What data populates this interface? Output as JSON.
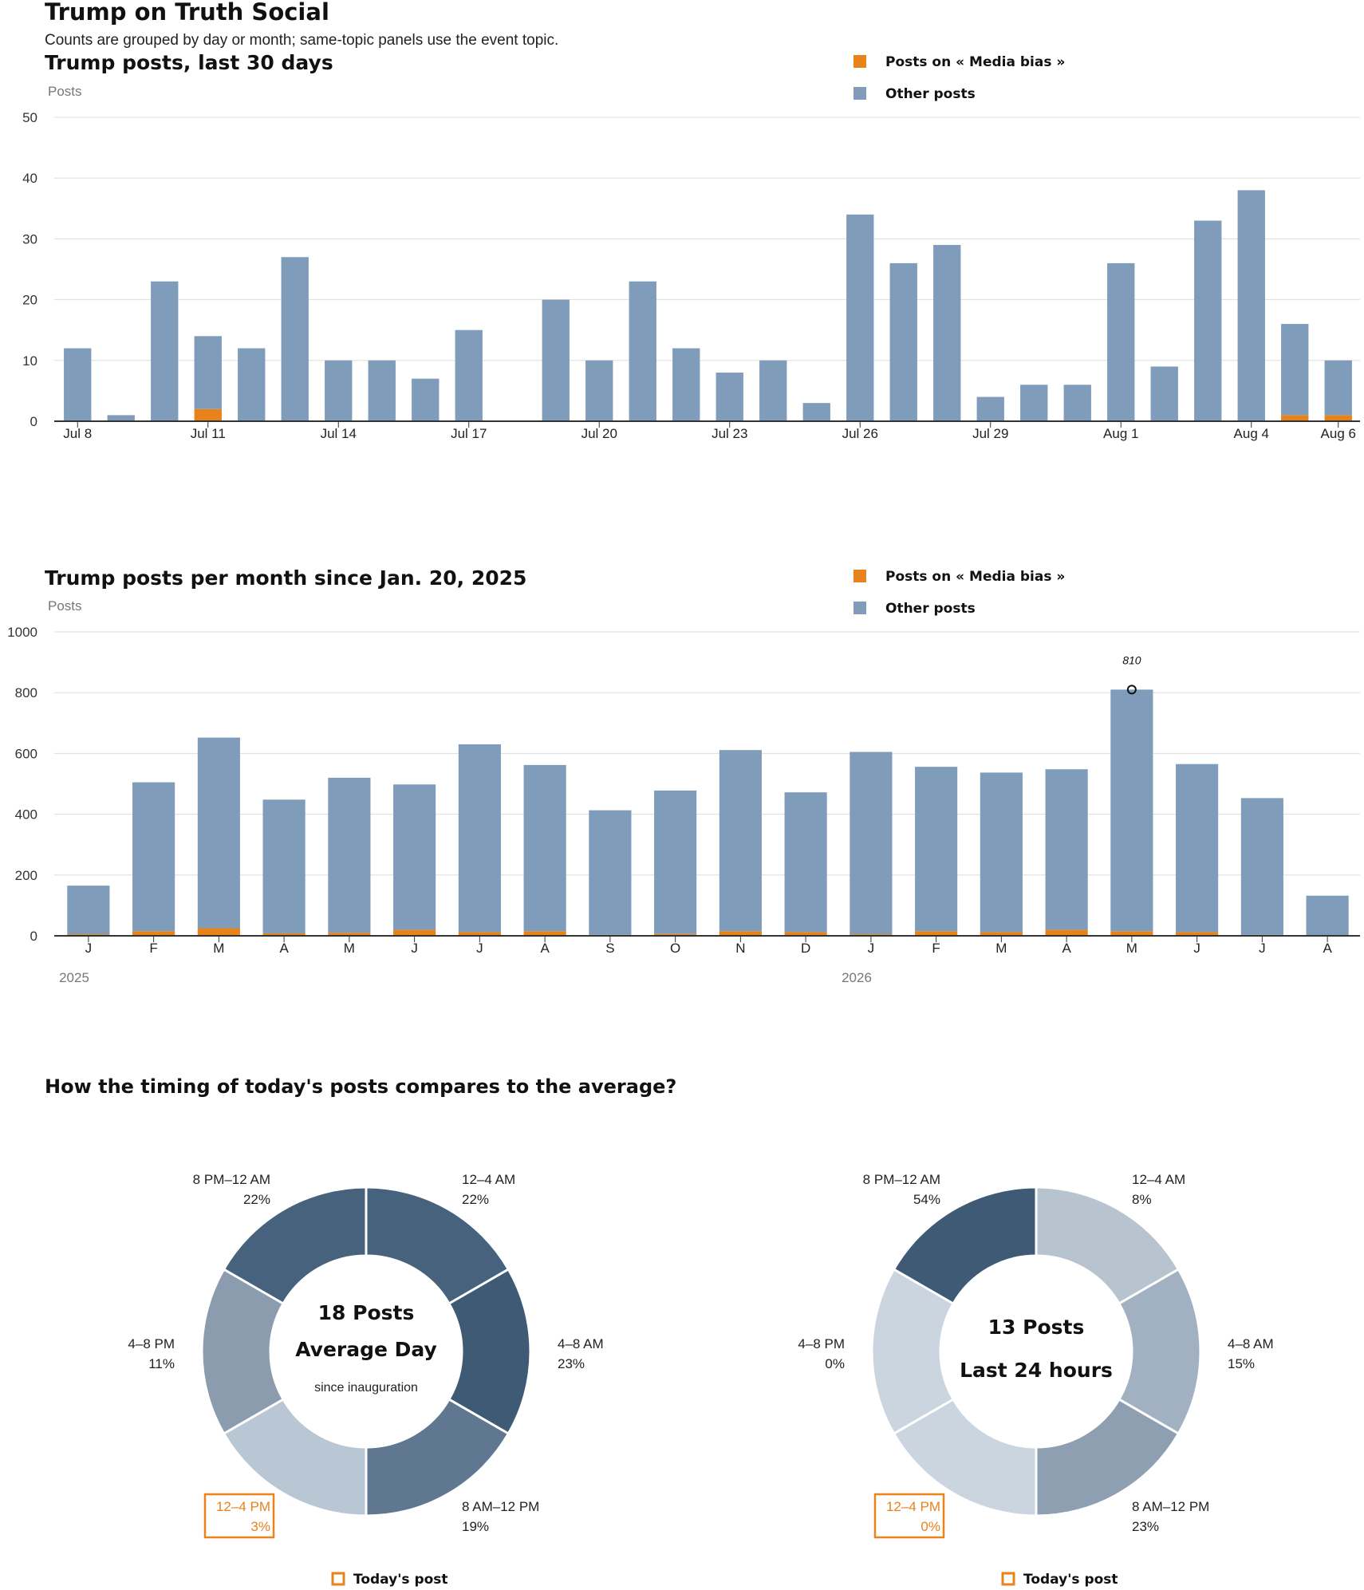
{
  "page": {
    "title": "Trump on Truth Social",
    "subtitle": "Counts are grouped by day or month; same-topic panels use the event topic."
  },
  "colors": {
    "topic": "#e8821a",
    "other": "#7f9cba",
    "axis": "#333333",
    "grid": "#dddddd",
    "muted": "#777777"
  },
  "legend": {
    "topic_label": "Posts on « Media bias »",
    "other_label": "Other posts"
  },
  "chart_data": [
    {
      "id": "daily",
      "type": "bar",
      "stacked": true,
      "title": "Trump posts, last 30 days",
      "ylabel": "Posts",
      "ylim": [
        0,
        50
      ],
      "yticks": [
        0,
        10,
        20,
        30,
        40,
        50
      ],
      "grid": true,
      "legend_position": "top-right",
      "categories": [
        "Jul 8",
        "Jul 9",
        "Jul 10",
        "Jul 11",
        "Jul 12",
        "Jul 13",
        "Jul 14",
        "Jul 15",
        "Jul 16",
        "Jul 17",
        "Jul 18",
        "Jul 19",
        "Jul 20",
        "Jul 21",
        "Jul 22",
        "Jul 23",
        "Jul 24",
        "Jul 25",
        "Jul 26",
        "Jul 27",
        "Jul 28",
        "Jul 29",
        "Jul 30",
        "Jul 31",
        "Aug 1",
        "Aug 2",
        "Aug 3",
        "Aug 4",
        "Aug 5",
        "Aug 6"
      ],
      "tick_labels": [
        {
          "index": 0,
          "label": "Jul 8"
        },
        {
          "index": 3,
          "label": "Jul 11"
        },
        {
          "index": 6,
          "label": "Jul 14"
        },
        {
          "index": 9,
          "label": "Jul 17"
        },
        {
          "index": 12,
          "label": "Jul 20"
        },
        {
          "index": 15,
          "label": "Jul 23"
        },
        {
          "index": 18,
          "label": "Jul 26"
        },
        {
          "index": 21,
          "label": "Jul 29"
        },
        {
          "index": 24,
          "label": "Aug 1"
        },
        {
          "index": 27,
          "label": "Aug 4"
        },
        {
          "index": 29,
          "label": "Aug 6"
        }
      ],
      "series": [
        {
          "name": "Posts on « Media bias »",
          "key": "topic",
          "values": [
            0,
            0,
            0,
            2,
            0,
            0,
            0,
            0,
            0,
            0,
            0,
            0,
            0,
            0,
            0,
            0,
            0,
            0,
            0,
            0,
            0,
            0,
            0,
            0,
            0,
            0,
            0,
            0,
            1,
            1
          ]
        },
        {
          "name": "Other posts",
          "key": "other",
          "values": [
            12,
            1,
            23,
            12,
            12,
            27,
            10,
            10,
            7,
            15,
            0,
            20,
            10,
            23,
            12,
            8,
            10,
            3,
            34,
            26,
            29,
            4,
            6,
            6,
            26,
            9,
            33,
            38,
            15,
            9
          ]
        }
      ]
    },
    {
      "id": "monthly",
      "type": "bar",
      "stacked": true,
      "title": "Trump posts per month since Jan. 20, 2025",
      "ylabel": "Posts",
      "ylim": [
        0,
        1000
      ],
      "yticks": [
        0,
        200,
        400,
        600,
        800,
        1000
      ],
      "grid": true,
      "legend_position": "top-right",
      "categories": [
        "J",
        "F",
        "M",
        "A",
        "M",
        "J",
        "J",
        "A",
        "S",
        "O",
        "N",
        "D",
        "J",
        "F",
        "M",
        "A",
        "M",
        "J",
        "J",
        "A"
      ],
      "year_labels": [
        {
          "index": 0,
          "label": "2025"
        },
        {
          "index": 12,
          "label": "2026"
        }
      ],
      "annotation": {
        "index": 16,
        "value": 810,
        "label": "810"
      },
      "series": [
        {
          "name": "Posts on « Media bias »",
          "key": "topic",
          "values": [
            5,
            15,
            25,
            8,
            10,
            20,
            12,
            15,
            3,
            6,
            15,
            12,
            5,
            15,
            12,
            20,
            15,
            12,
            3,
            2
          ]
        },
        {
          "name": "Other posts",
          "key": "other",
          "values": [
            160,
            490,
            627,
            440,
            510,
            478,
            618,
            547,
            410,
            472,
            596,
            460,
            600,
            541,
            525,
            528,
            795,
            553,
            450,
            130
          ]
        }
      ]
    },
    {
      "id": "timing",
      "type": "pie",
      "donut": true,
      "title": "How the timing of today's posts compares to the average?",
      "highlight_label": "Today's post",
      "charts": [
        {
          "center_value": "18 Posts",
          "center_label": "Average Day",
          "center_note": "since inauguration",
          "slices": [
            {
              "label": "12–4 AM",
              "value_label": "22%",
              "value": 22,
              "color": "#46627c",
              "highlight": false
            },
            {
              "label": "4–8 AM",
              "value_label": "23%",
              "value": 23,
              "color": "#3f5a74",
              "highlight": false
            },
            {
              "label": "8 AM–12 PM",
              "value_label": "19%",
              "value": 19,
              "color": "#5f7791",
              "highlight": false
            },
            {
              "label": "12–4 PM",
              "value_label": "3%",
              "value": 3,
              "color": "#b9c6d3",
              "highlight": true
            },
            {
              "label": "4–8 PM",
              "value_label": "11%",
              "value": 11,
              "color": "#8a9cad",
              "highlight": false
            },
            {
              "label": "8 PM–12 AM",
              "value_label": "22%",
              "value": 22,
              "color": "#46627c",
              "highlight": false
            }
          ]
        },
        {
          "center_value": "13 Posts",
          "center_label": "Last 24 hours",
          "center_note": "",
          "slices": [
            {
              "label": "12–4 AM",
              "value_label": "8%",
              "value": 8,
              "color": "#b7c4d0",
              "highlight": false
            },
            {
              "label": "4–8 AM",
              "value_label": "15%",
              "value": 15,
              "color": "#a2b1c1",
              "highlight": false
            },
            {
              "label": "8 AM–12 PM",
              "value_label": "23%",
              "value": 23,
              "color": "#8e9fb1",
              "highlight": false
            },
            {
              "label": "12–4 PM",
              "value_label": "0%",
              "value": 0,
              "color": "#cbd5df",
              "highlight": true
            },
            {
              "label": "4–8 PM",
              "value_label": "0%",
              "value": 0,
              "color": "#cbd5df",
              "highlight": false
            },
            {
              "label": "8 PM–12 AM",
              "value_label": "54%",
              "value": 54,
              "color": "#3f5a74",
              "highlight": false
            }
          ]
        }
      ]
    }
  ]
}
